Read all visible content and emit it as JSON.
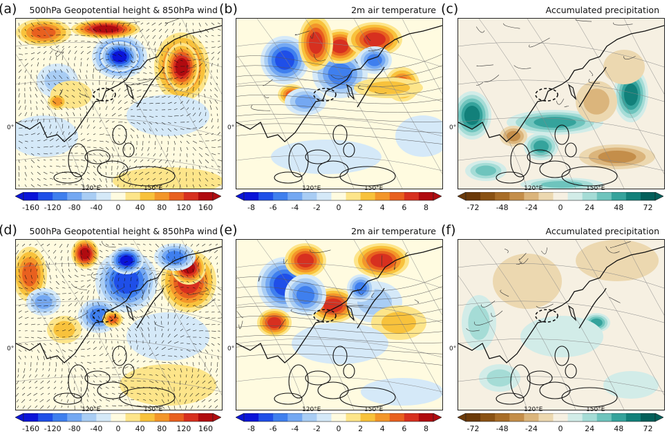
{
  "chart_data": [
    {
      "id": "a",
      "type": "heatmap",
      "label": "(a)",
      "title": "500hPa Geopotential height & 850hPa wind",
      "variable": "geopotential height anomaly + wind vectors",
      "lon_labels": [
        "120°E",
        "150°E"
      ],
      "lat_label": "0°",
      "colorbar": {
        "ticks": [
          "-160",
          "-120",
          "-80",
          "-40",
          "0",
          "40",
          "80",
          "120",
          "160"
        ],
        "palette": "bwr"
      }
    },
    {
      "id": "b",
      "type": "heatmap",
      "label": "(b)",
      "title": "2m air temperature",
      "variable": "2m temperature anomaly",
      "lon_labels": [
        "120°E",
        "150°E"
      ],
      "lat_label": "0°",
      "colorbar": {
        "ticks": [
          "-8",
          "-6",
          "-4",
          "-2",
          "0",
          "2",
          "4",
          "6",
          "8"
        ],
        "palette": "bwr"
      }
    },
    {
      "id": "c",
      "type": "heatmap",
      "label": "(c)",
      "title": "Accumulated precipitation",
      "variable": "precipitation anomaly",
      "lon_labels": [
        "120°E",
        "150°E"
      ],
      "lat_label": "0°",
      "colorbar": {
        "ticks": [
          "-72",
          "-48",
          "-24",
          "0",
          "24",
          "48",
          "72"
        ],
        "palette": "brbg"
      }
    },
    {
      "id": "d",
      "type": "heatmap",
      "label": "(d)",
      "title": "500hPa Geopotential height & 850hPa wind",
      "variable": "geopotential height anomaly + wind vectors",
      "lon_labels": [
        "120°E",
        "150°E"
      ],
      "lat_label": "0°",
      "colorbar": {
        "ticks": [
          "-160",
          "-120",
          "-80",
          "-40",
          "0",
          "40",
          "80",
          "120",
          "160"
        ],
        "palette": "bwr"
      }
    },
    {
      "id": "e",
      "type": "heatmap",
      "label": "(e)",
      "title": "2m air temperature",
      "variable": "2m temperature anomaly",
      "lon_labels": [
        "120°E",
        "150°E"
      ],
      "lat_label": "0°",
      "colorbar": {
        "ticks": [
          "-8",
          "-6",
          "-4",
          "-2",
          "0",
          "2",
          "4",
          "6",
          "8"
        ],
        "palette": "bwr"
      }
    },
    {
      "id": "f",
      "type": "heatmap",
      "label": "(f)",
      "title": "Accumulated precipitation",
      "variable": "precipitation anomaly",
      "lon_labels": [
        "120°E",
        "150°E"
      ],
      "lat_label": "0°",
      "colorbar": {
        "ticks": [
          "-72",
          "-48",
          "-24",
          "0",
          "24",
          "48",
          "72"
        ],
        "palette": "brbg"
      }
    }
  ],
  "palettes": {
    "bwr": [
      "#0a14d8",
      "#1f4fe8",
      "#3f7fee",
      "#74a8f2",
      "#a9cdf4",
      "#d5e9f8",
      "#fffbe0",
      "#fde58a",
      "#f8c23c",
      "#f3962a",
      "#e8601f",
      "#d7301f",
      "#b00b10"
    ],
    "brbg": [
      "#6b3a0a",
      "#8a5214",
      "#a86d28",
      "#c48e4a",
      "#dbb57c",
      "#ecd8b0",
      "#f6f0e2",
      "#d2ece8",
      "#a5dcd6",
      "#6ec4bd",
      "#35a39c",
      "#12807a",
      "#035f5a"
    ]
  }
}
